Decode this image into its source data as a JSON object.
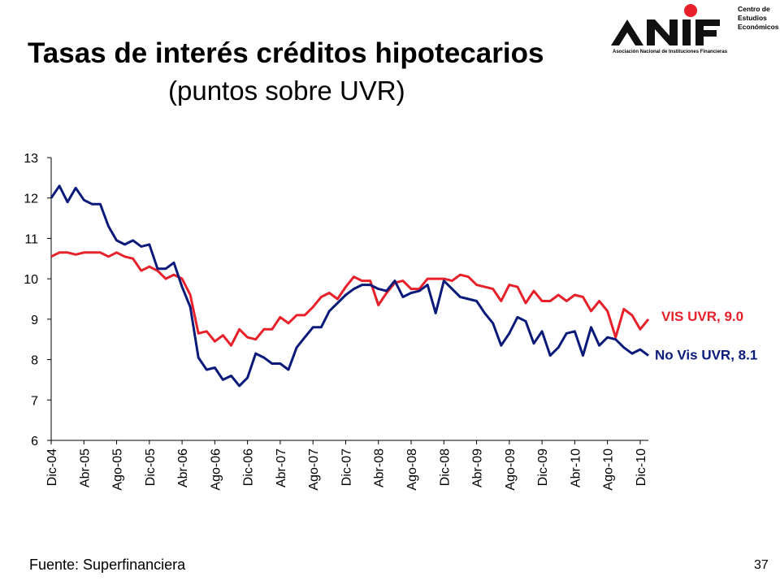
{
  "header": {
    "title": "Tasas de interés créditos hipotecarios",
    "subtitle": "(puntos sobre UVR)"
  },
  "logo": {
    "wordmark": "ANIF",
    "tagline": "Asociación Nacional de Instituciones Financieras",
    "center_lines": [
      "Centro de",
      "Estudios",
      "Económicos"
    ],
    "dot_color": "#e8202a"
  },
  "footer": {
    "source": "Fuente: Superfinanciera",
    "page_number": "37"
  },
  "chart_data": {
    "type": "line",
    "title": "",
    "xlabel": "",
    "ylabel": "",
    "ylim": [
      6,
      13
    ],
    "yticks": [
      "6",
      "7",
      "8",
      "9",
      "10",
      "11",
      "12",
      "13"
    ],
    "x_start": "Dic-04",
    "x_end": "Dic-10",
    "xtick_labels": [
      "Dic-04",
      "Abr-05",
      "Ago-05",
      "Dic-05",
      "Abr-06",
      "Ago-06",
      "Dic-06",
      "Abr-07",
      "Ago-07",
      "Dic-07",
      "Abr-08",
      "Ago-08",
      "Dic-08",
      "Abr-09",
      "Ago-09",
      "Dic-09",
      "Abr-10",
      "Ago-10",
      "Dic-10"
    ],
    "grid": false,
    "legend": "end-labels",
    "series": [
      {
        "name": "VIS UVR",
        "end_label": "VIS UVR, 9.0",
        "color": "#e8202a",
        "values": [
          10.55,
          10.65,
          10.65,
          10.6,
          10.65,
          10.65,
          10.65,
          10.55,
          10.65,
          10.55,
          10.5,
          10.2,
          10.3,
          10.2,
          10.0,
          10.1,
          10.0,
          9.6,
          8.65,
          8.7,
          8.45,
          8.6,
          8.35,
          8.75,
          8.55,
          8.5,
          8.75,
          8.75,
          9.05,
          8.9,
          9.1,
          9.1,
          9.3,
          9.55,
          9.65,
          9.5,
          9.8,
          10.05,
          9.95,
          9.95,
          9.35,
          9.65,
          9.9,
          9.95,
          9.75,
          9.75,
          10.0,
          10.0,
          10.0,
          9.95,
          10.1,
          10.05,
          9.85,
          9.8,
          9.75,
          9.45,
          9.85,
          9.8,
          9.4,
          9.7,
          9.45,
          9.45,
          9.6,
          9.45,
          9.6,
          9.55,
          9.2,
          9.45,
          9.2,
          8.55,
          9.25,
          9.1,
          8.75,
          9.0
        ]
      },
      {
        "name": "No Vis UVR",
        "end_label": "No Vis UVR, 8.1",
        "color": "#0a1a7a",
        "values": [
          12.0,
          12.3,
          11.9,
          12.25,
          11.95,
          11.85,
          11.85,
          11.3,
          10.95,
          10.85,
          10.95,
          10.8,
          10.85,
          10.25,
          10.25,
          10.4,
          9.8,
          9.3,
          8.05,
          7.75,
          7.8,
          7.5,
          7.6,
          7.35,
          7.55,
          8.15,
          8.05,
          7.9,
          7.9,
          7.75,
          8.3,
          8.55,
          8.8,
          8.8,
          9.2,
          9.4,
          9.6,
          9.75,
          9.85,
          9.85,
          9.75,
          9.7,
          9.95,
          9.55,
          9.65,
          9.7,
          9.85,
          9.15,
          9.95,
          9.75,
          9.55,
          9.5,
          9.45,
          9.15,
          8.9,
          8.35,
          8.65,
          9.05,
          8.95,
          8.4,
          8.7,
          8.1,
          8.3,
          8.65,
          8.7,
          8.1,
          8.8,
          8.35,
          8.55,
          8.5,
          8.3,
          8.15,
          8.25,
          8.1
        ]
      }
    ]
  }
}
